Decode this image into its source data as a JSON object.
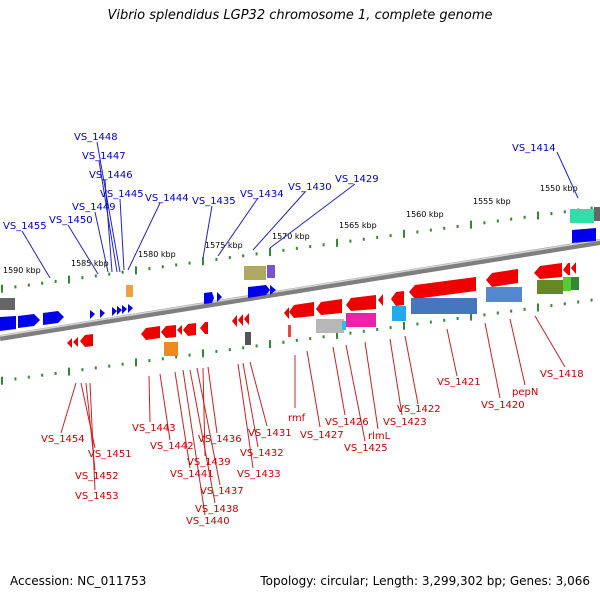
{
  "header": {
    "title": "Vibrio splendidus LGP32 chromosome 1, complete genome"
  },
  "footer": {
    "accession": "Accession: NC_011753",
    "summary": "Topology: circular; Length: 3,299,302 bp; Genes: 3,066"
  },
  "colors": {
    "forward_label": "#0000cc",
    "reverse_label": "#cc0000",
    "backbone": "#8c8c8c",
    "tick": "#338833"
  },
  "scale_labels": [
    "1550 kbp",
    "1555 kbp",
    "1560 kbp",
    "1565 kbp",
    "1570 kbp",
    "1575 kbp",
    "1580 kbp",
    "1585 kbp",
    "1590 kbp"
  ],
  "top_labels": [
    "VS_1448",
    "VS_1447",
    "VS_1446",
    "VS_1445",
    "VS_1449",
    "VS_1450",
    "VS_1455",
    "VS_1444",
    "VS_1435",
    "VS_1434",
    "VS_1430",
    "VS_1429",
    "VS_1414"
  ],
  "bottom_labels": [
    "VS_1454",
    "VS_1451",
    "VS_1452",
    "VS_1453",
    "VS_1443",
    "VS_1442",
    "VS_1441",
    "VS_1440",
    "VS_1438",
    "VS_1437",
    "VS_1439",
    "VS_1436",
    "VS_1431",
    "VS_1432",
    "VS_1433",
    "rmf",
    "VS_1427",
    "VS_1426",
    "VS_1425",
    "rlmL",
    "VS_1423",
    "VS_1422",
    "VS_1421",
    "VS_1420",
    "pepN",
    "VS_1418"
  ]
}
